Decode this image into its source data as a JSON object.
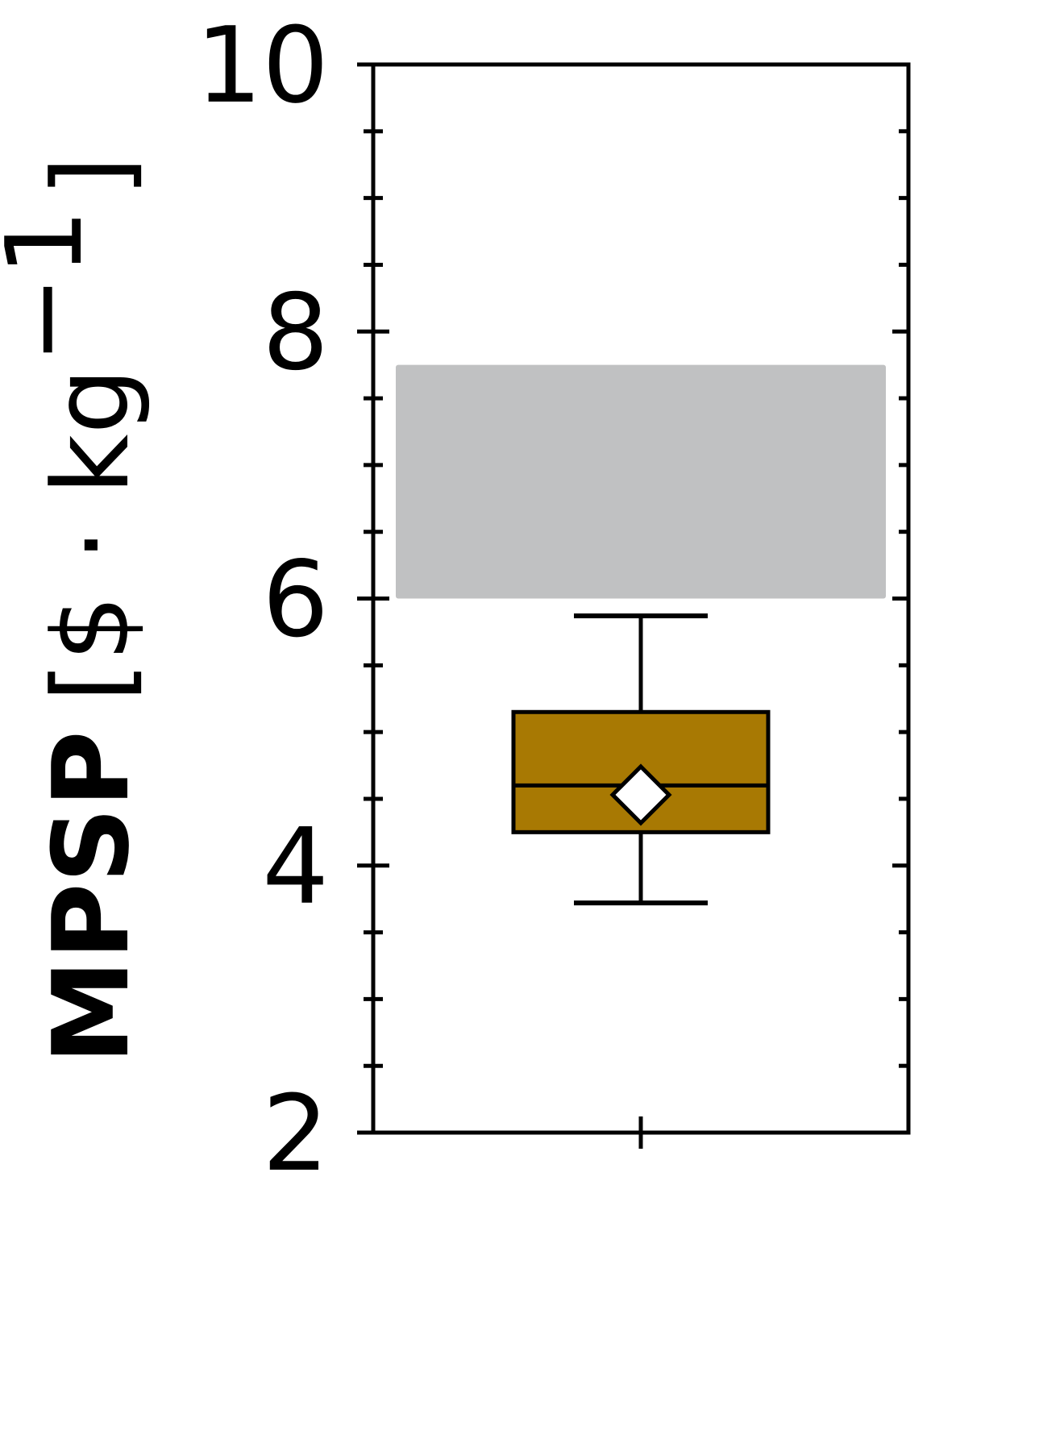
{
  "chart_data": {
    "type": "box",
    "ylabel_main": "MPSP",
    "ylabel_unit": "[$ · kg",
    "ylabel_exponent": "−1",
    "ylabel_close": "]",
    "ylim": [
      2,
      10
    ],
    "yticks": [
      "2",
      "4",
      "6",
      "8",
      "10"
    ],
    "minor_tick_step": 0.5,
    "x_categories": [
      ""
    ],
    "shaded_band": {
      "low": 6.0,
      "high": 7.75,
      "color": "#c0c1c2"
    },
    "box": {
      "whisker_low": 3.72,
      "q1": 4.25,
      "median": 4.6,
      "q3": 5.15,
      "whisker_high": 5.87,
      "mean": 4.53,
      "fill_color": "#a87903",
      "mean_marker": "diamond",
      "mean_marker_color": "#ffffff"
    }
  }
}
